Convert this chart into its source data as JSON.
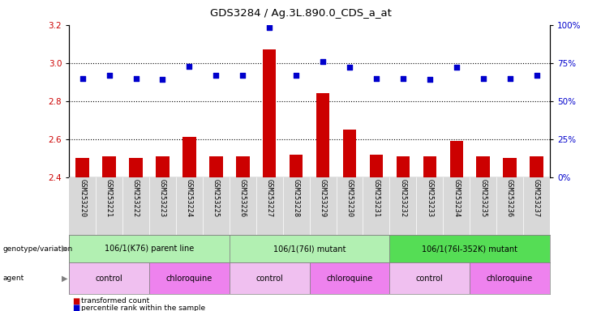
{
  "title": "GDS3284 / Ag.3L.890.0_CDS_a_at",
  "samples": [
    "GSM253220",
    "GSM253221",
    "GSM253222",
    "GSM253223",
    "GSM253224",
    "GSM253225",
    "GSM253226",
    "GSM253227",
    "GSM253228",
    "GSM253229",
    "GSM253230",
    "GSM253231",
    "GSM253232",
    "GSM253233",
    "GSM253234",
    "GSM253235",
    "GSM253236",
    "GSM253237"
  ],
  "transformed_count": [
    2.5,
    2.51,
    2.5,
    2.51,
    2.61,
    2.51,
    2.51,
    3.07,
    2.52,
    2.84,
    2.65,
    2.52,
    2.51,
    2.51,
    2.59,
    2.51,
    2.5,
    2.51
  ],
  "percentile_rank": [
    65,
    67,
    65,
    64,
    73,
    67,
    67,
    98,
    67,
    76,
    72,
    65,
    65,
    64,
    72,
    65,
    65,
    67
  ],
  "ylim_left": [
    2.4,
    3.2
  ],
  "ylim_right": [
    0,
    100
  ],
  "yticks_left": [
    2.4,
    2.6,
    2.8,
    3.0,
    3.2
  ],
  "yticks_right": [
    0,
    25,
    50,
    75,
    100
  ],
  "bar_color": "#cc0000",
  "dot_color": "#0000cc",
  "genotype_groups": [
    {
      "label": "106/1(K76) parent line",
      "start": 0,
      "end": 6,
      "color": "#b2f0b2"
    },
    {
      "label": "106/1(76I) mutant",
      "start": 6,
      "end": 12,
      "color": "#b2f0b2"
    },
    {
      "label": "106/1(76I-352K) mutant",
      "start": 12,
      "end": 18,
      "color": "#55dd55"
    }
  ],
  "agent_groups": [
    {
      "label": "control",
      "start": 0,
      "end": 3,
      "color": "#f0c0f0"
    },
    {
      "label": "chloroquine",
      "start": 3,
      "end": 6,
      "color": "#ee82ee"
    },
    {
      "label": "control",
      "start": 6,
      "end": 9,
      "color": "#f0c0f0"
    },
    {
      "label": "chloroquine",
      "start": 9,
      "end": 12,
      "color": "#ee82ee"
    },
    {
      "label": "control",
      "start": 12,
      "end": 15,
      "color": "#f0c0f0"
    },
    {
      "label": "chloroquine",
      "start": 15,
      "end": 18,
      "color": "#ee82ee"
    }
  ]
}
